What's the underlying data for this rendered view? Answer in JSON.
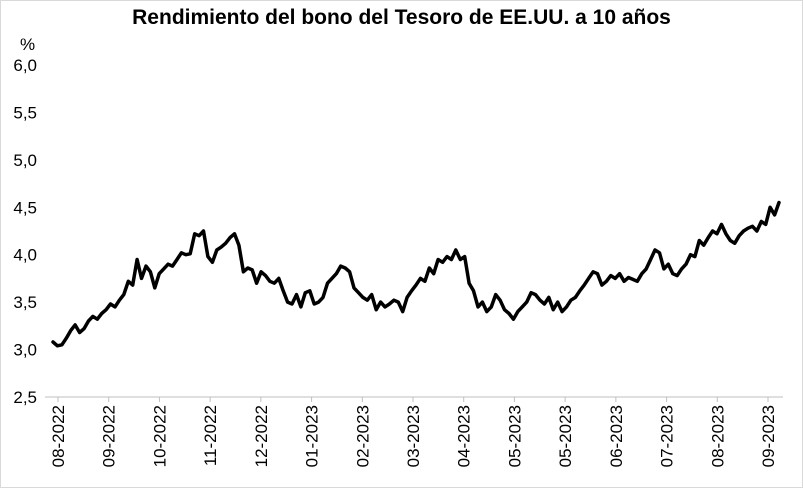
{
  "chart_data": {
    "type": "line",
    "title": "Rendimiento del bono del Tesoro de EE.UU. a 10 años",
    "ylabel": "%",
    "xlabel": "",
    "ylim": [
      2.5,
      6.0
    ],
    "y_ticks": [
      "2,5",
      "3,0",
      "3,5",
      "4,0",
      "4,5",
      "5,0",
      "5,5",
      "6,0"
    ],
    "y_tick_values": [
      2.5,
      3.0,
      3.5,
      4.0,
      4.5,
      5.0,
      5.5,
      6.0
    ],
    "x_ticks": [
      "08-2022",
      "09-2022",
      "10-2022",
      "11-2022",
      "12-2022",
      "01-2023",
      "02-2023",
      "03-2023",
      "04-2023",
      "05-2023",
      "05-2023",
      "06-2023",
      "07-2023",
      "08-2023",
      "09-2023"
    ],
    "grid": false,
    "legend": "none",
    "line_color": "#000000",
    "series": [
      {
        "values": [
          3.08,
          3.04,
          3.05,
          3.12,
          3.2,
          3.26,
          3.18,
          3.22,
          3.3,
          3.35,
          3.32,
          3.38,
          3.42,
          3.48,
          3.45,
          3.52,
          3.58,
          3.72,
          3.68,
          3.95,
          3.75,
          3.88,
          3.82,
          3.65,
          3.8,
          3.85,
          3.9,
          3.88,
          3.95,
          4.02,
          4.0,
          4.01,
          4.22,
          4.2,
          4.25,
          3.98,
          3.92,
          4.05,
          4.08,
          4.12,
          4.18,
          4.22,
          4.1,
          3.82,
          3.86,
          3.84,
          3.7,
          3.82,
          3.78,
          3.72,
          3.7,
          3.75,
          3.62,
          3.5,
          3.48,
          3.58,
          3.45,
          3.6,
          3.62,
          3.48,
          3.5,
          3.55,
          3.7,
          3.75,
          3.8,
          3.88,
          3.86,
          3.82,
          3.65,
          3.6,
          3.55,
          3.52,
          3.58,
          3.42,
          3.5,
          3.45,
          3.48,
          3.52,
          3.5,
          3.4,
          3.55,
          3.62,
          3.68,
          3.75,
          3.72,
          3.86,
          3.8,
          3.95,
          3.92,
          3.98,
          3.95,
          4.05,
          3.95,
          3.98,
          3.7,
          3.62,
          3.45,
          3.5,
          3.4,
          3.45,
          3.58,
          3.52,
          3.42,
          3.38,
          3.32,
          3.4,
          3.45,
          3.5,
          3.6,
          3.58,
          3.52,
          3.48,
          3.55,
          3.42,
          3.5,
          3.4,
          3.45,
          3.52,
          3.55,
          3.62,
          3.68,
          3.75,
          3.82,
          3.8,
          3.68,
          3.72,
          3.78,
          3.75,
          3.8,
          3.72,
          3.76,
          3.74,
          3.72,
          3.8,
          3.85,
          3.95,
          4.05,
          4.02,
          3.85,
          3.9,
          3.8,
          3.78,
          3.85,
          3.9,
          4.0,
          3.98,
          4.15,
          4.1,
          4.18,
          4.25,
          4.22,
          4.32,
          4.22,
          4.15,
          4.12,
          4.2,
          4.25,
          4.28,
          4.3,
          4.25,
          4.35,
          4.32,
          4.5,
          4.42,
          4.55
        ]
      }
    ]
  }
}
